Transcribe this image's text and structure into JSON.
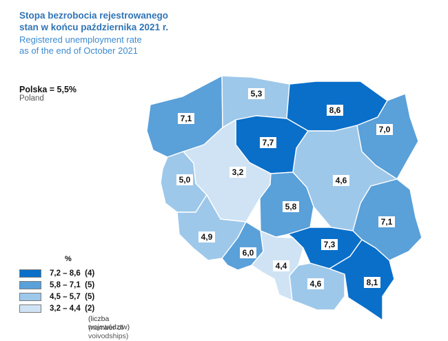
{
  "title": {
    "pl": "Stopa bezrobocia rejestrowanego\nstan w końcu października 2021 r.",
    "pl_line1": "Stopa bezrobocia rejestrowanego",
    "pl_line2": "stan w końcu października 2021 r.",
    "en_line1": "Registered unemployment rate",
    "en_line2": "as of the end of October 2021"
  },
  "summary": {
    "pl": "Polska = 5,5%",
    "en": "Poland"
  },
  "colors": {
    "class_1": "#0a6fc9",
    "class_2": "#5aa0d9",
    "class_3": "#9ec8ea",
    "class_4": "#cfe3f4",
    "border": "#ffffff"
  },
  "regions": [
    {
      "id": "zachodniopomorskie",
      "value": "7,1",
      "class": 2
    },
    {
      "id": "pomorskie",
      "value": "5,3",
      "class": 3
    },
    {
      "id": "warminsko-mazurskie",
      "value": "8,6",
      "class": 1
    },
    {
      "id": "podlaskie",
      "value": "7,0",
      "class": 2
    },
    {
      "id": "kujawsko-pomorskie",
      "value": "7,7",
      "class": 1
    },
    {
      "id": "lubuskie",
      "value": "5,0",
      "class": 3
    },
    {
      "id": "wielkopolskie",
      "value": "3,2",
      "class": 4
    },
    {
      "id": "mazowieckie",
      "value": "4,6",
      "class": 3
    },
    {
      "id": "lodzkie",
      "value": "5,8",
      "class": 2
    },
    {
      "id": "lubelskie",
      "value": "7,1",
      "class": 2
    },
    {
      "id": "dolnoslaskie",
      "value": "4,9",
      "class": 3
    },
    {
      "id": "opolskie",
      "value": "6,0",
      "class": 2
    },
    {
      "id": "slaskie",
      "value": "4,4",
      "class": 4
    },
    {
      "id": "swietokrzyskie",
      "value": "7,3",
      "class": 1
    },
    {
      "id": "malopolskie",
      "value": "4,6",
      "class": 3
    },
    {
      "id": "podkarpackie",
      "value": "8,1",
      "class": 1
    }
  ],
  "legend": {
    "unit": "%",
    "items": [
      {
        "label": "7,2 – 8,6",
        "count": "(4)",
        "text": "7,2 – 8,6  (4)",
        "class": 1
      },
      {
        "label": "5,8 – 7,1",
        "count": "(5)",
        "text": "5,8 – 7,1  (5)",
        "class": 2
      },
      {
        "label": "4,5 – 5,7",
        "count": "(5)",
        "text": "4,5 – 5,7  (5)",
        "class": 3
      },
      {
        "label": "3,2 – 4,4",
        "count": "(2)",
        "text": "3,2 – 4,4  (2)",
        "class": 4
      }
    ],
    "note_pl": "(liczba województw)",
    "note_en": "(number of voivodships)"
  }
}
